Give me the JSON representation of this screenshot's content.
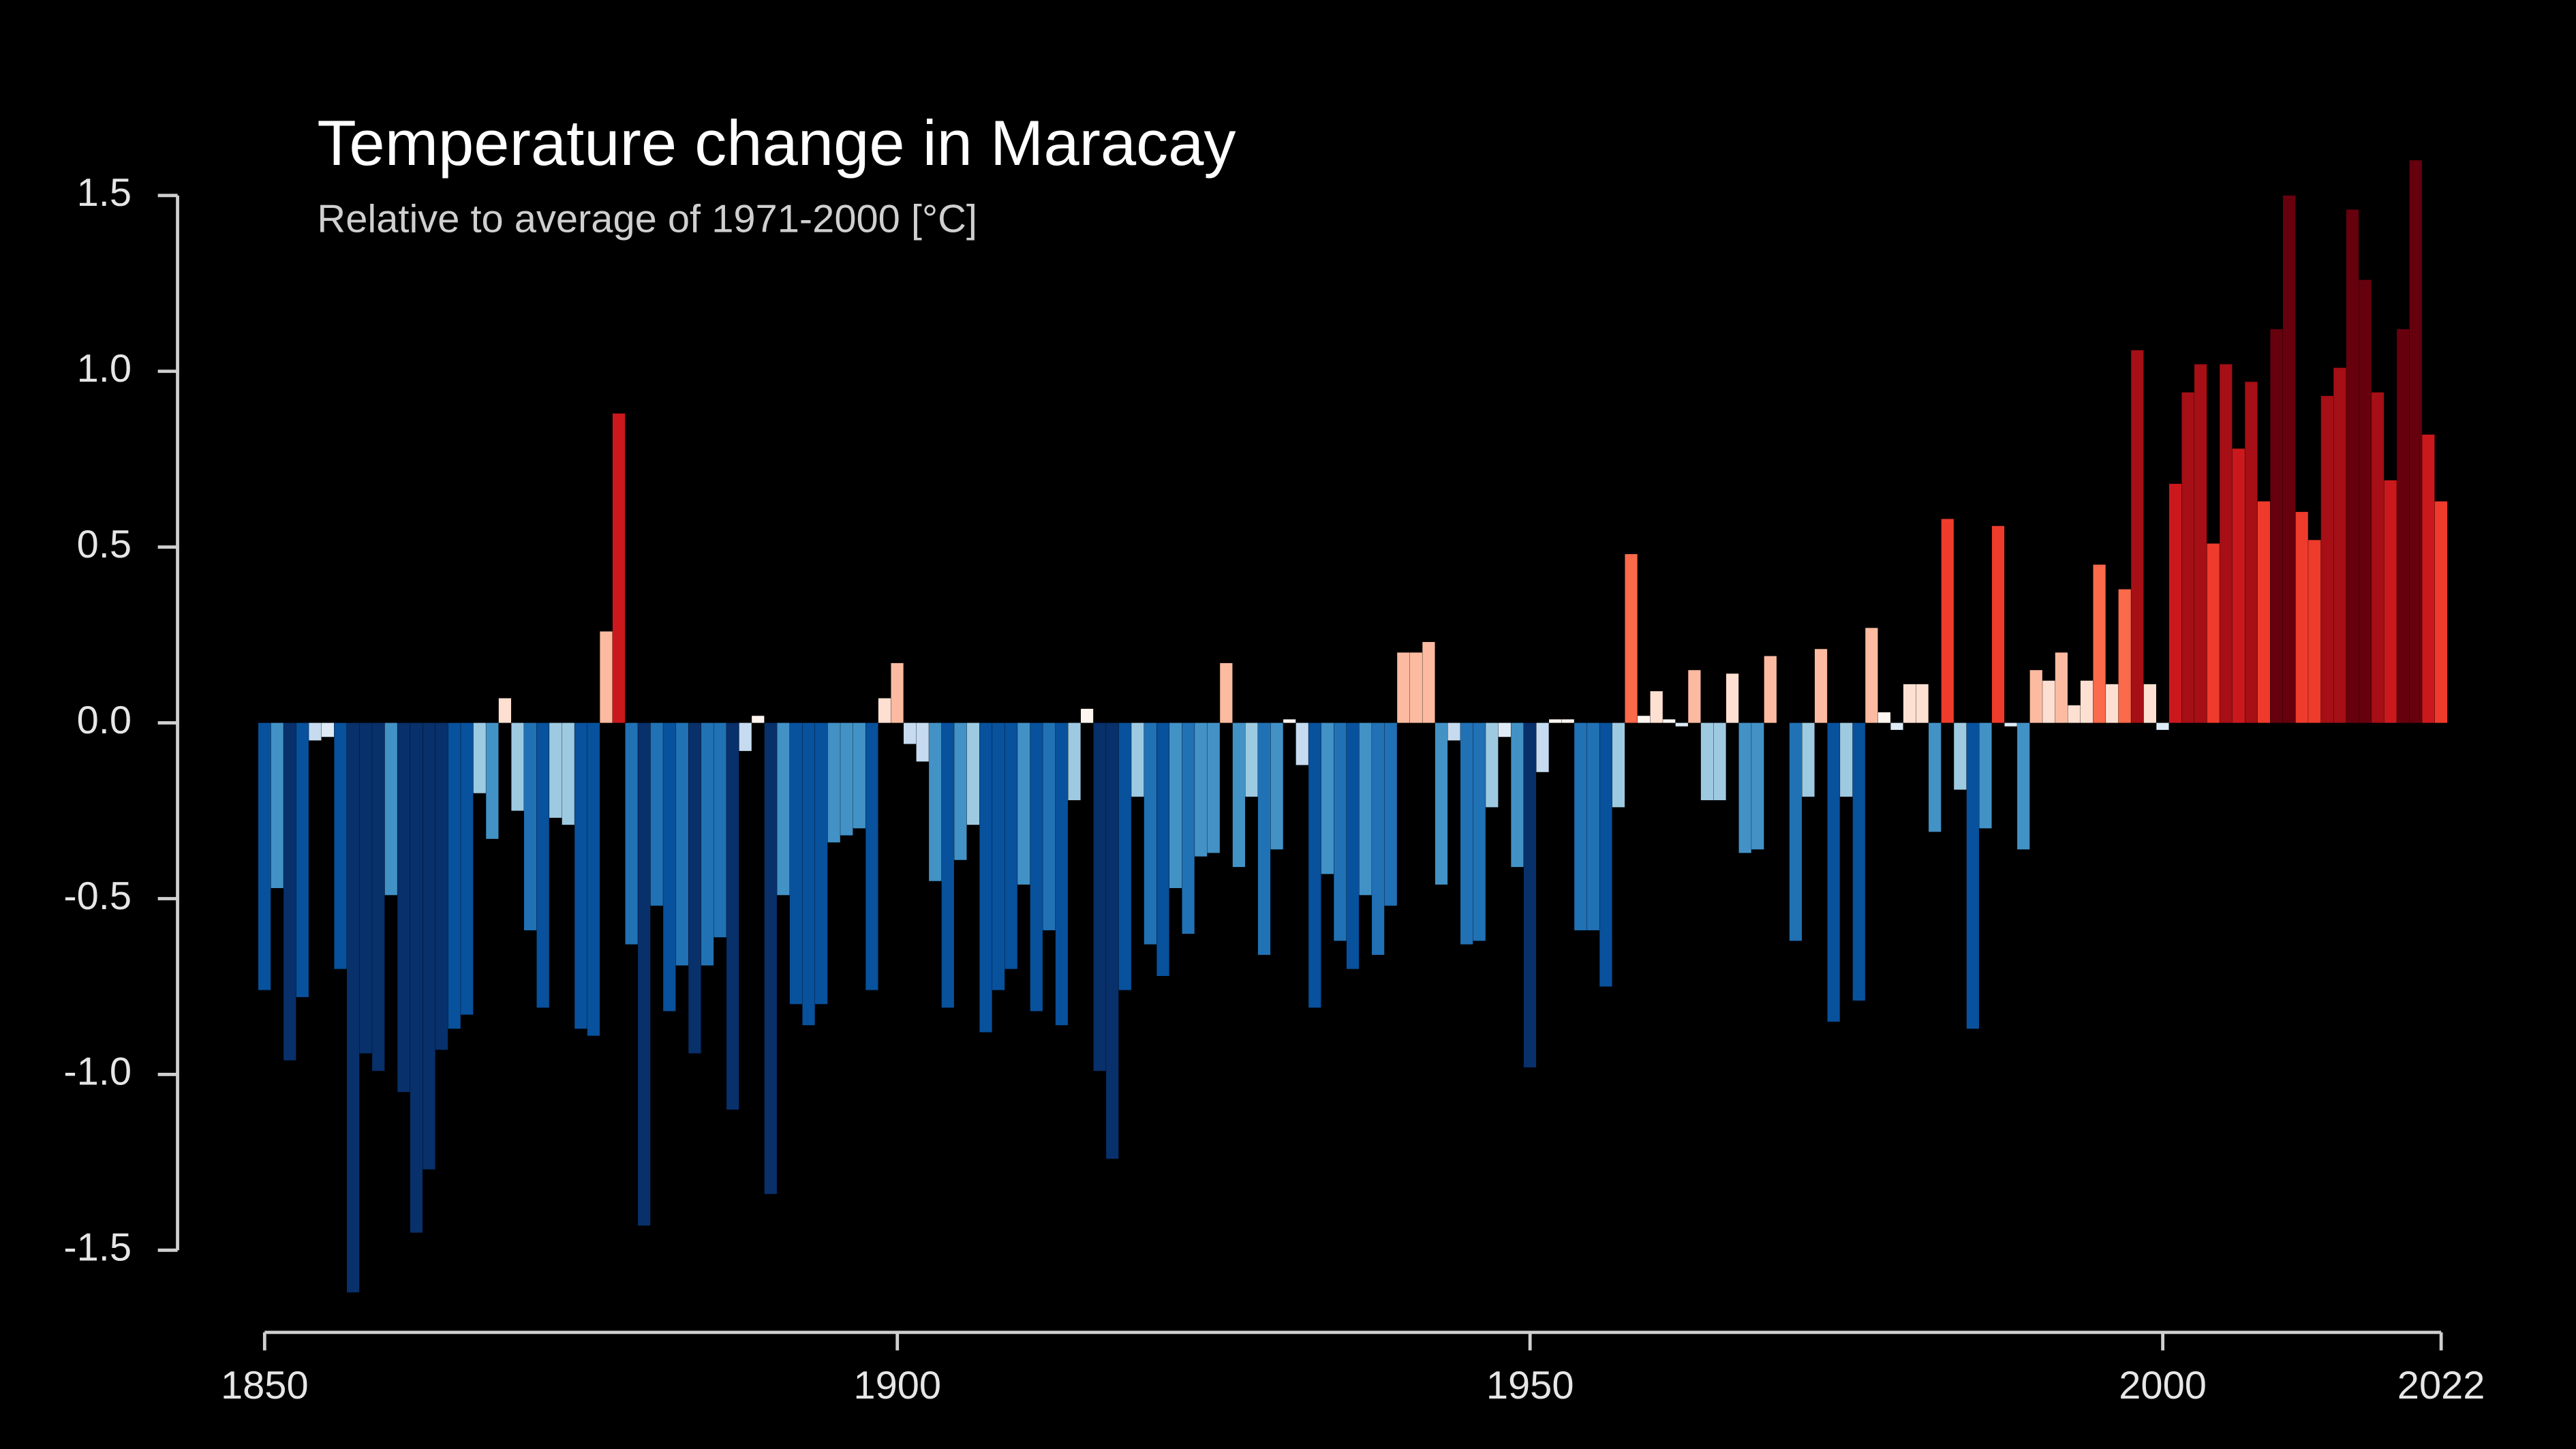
{
  "chart_data": {
    "type": "bar",
    "title": "Temperature change in Maracay",
    "subtitle": "Relative to average of 1971-2000  [°C]",
    "x": [
      1850,
      1851,
      1852,
      1853,
      1854,
      1855,
      1856,
      1857,
      1858,
      1859,
      1860,
      1861,
      1862,
      1863,
      1864,
      1865,
      1866,
      1867,
      1868,
      1869,
      1870,
      1871,
      1872,
      1873,
      1874,
      1875,
      1876,
      1877,
      1878,
      1879,
      1880,
      1881,
      1882,
      1883,
      1884,
      1885,
      1886,
      1887,
      1888,
      1889,
      1890,
      1891,
      1892,
      1893,
      1894,
      1895,
      1896,
      1897,
      1898,
      1899,
      1900,
      1901,
      1902,
      1903,
      1904,
      1905,
      1906,
      1907,
      1908,
      1909,
      1910,
      1911,
      1912,
      1913,
      1914,
      1915,
      1916,
      1917,
      1918,
      1919,
      1920,
      1921,
      1922,
      1923,
      1924,
      1925,
      1926,
      1927,
      1928,
      1929,
      1930,
      1931,
      1932,
      1933,
      1934,
      1935,
      1936,
      1937,
      1938,
      1939,
      1940,
      1941,
      1942,
      1943,
      1944,
      1945,
      1946,
      1947,
      1948,
      1949,
      1950,
      1951,
      1952,
      1953,
      1954,
      1955,
      1956,
      1957,
      1958,
      1959,
      1960,
      1961,
      1962,
      1963,
      1964,
      1965,
      1966,
      1967,
      1968,
      1969,
      1970,
      1971,
      1972,
      1973,
      1974,
      1975,
      1976,
      1977,
      1978,
      1979,
      1980,
      1981,
      1982,
      1983,
      1984,
      1985,
      1986,
      1987,
      1988,
      1989,
      1990,
      1991,
      1992,
      1993,
      1994,
      1995,
      1996,
      1997,
      1998,
      1999,
      2000,
      2001,
      2002,
      2003,
      2004,
      2005,
      2006,
      2007,
      2008,
      2009,
      2010,
      2011,
      2012,
      2013,
      2014,
      2015,
      2016,
      2017,
      2018,
      2019,
      2020,
      2021,
      2022
    ],
    "values": [
      -0.76,
      -0.47,
      -0.96,
      -0.78,
      -0.05,
      -0.04,
      -0.7,
      -1.62,
      -0.94,
      -0.99,
      -0.49,
      -1.05,
      -1.45,
      -1.27,
      -0.93,
      -0.87,
      -0.83,
      -0.2,
      -0.33,
      0.07,
      -0.25,
      -0.59,
      -0.81,
      -0.27,
      -0.29,
      -0.87,
      -0.89,
      0.26,
      0.88,
      -0.63,
      -1.43,
      -0.52,
      -0.82,
      -0.69,
      -0.94,
      -0.69,
      -0.61,
      -1.1,
      -0.08,
      0.02,
      -1.34,
      -0.49,
      -0.8,
      -0.86,
      -0.8,
      -0.34,
      -0.32,
      -0.3,
      -0.76,
      0.07,
      0.17,
      -0.06,
      -0.11,
      -0.45,
      -0.81,
      -0.39,
      -0.29,
      -0.88,
      -0.76,
      -0.7,
      -0.46,
      -0.82,
      -0.59,
      -0.86,
      -0.22,
      0.04,
      -0.99,
      -1.24,
      -0.76,
      -0.21,
      -0.63,
      -0.72,
      -0.47,
      -0.6,
      -0.38,
      -0.37,
      0.17,
      -0.41,
      -0.21,
      -0.66,
      -0.36,
      0.01,
      -0.12,
      -0.81,
      -0.43,
      -0.62,
      -0.7,
      -0.49,
      -0.66,
      -0.52,
      0.2,
      0.2,
      0.23,
      -0.46,
      -0.05,
      -0.63,
      -0.62,
      -0.24,
      -0.04,
      -0.41,
      -0.98,
      -0.14,
      0.01,
      0.01,
      -0.59,
      -0.59,
      -0.75,
      -0.24,
      0.48,
      0.02,
      0.09,
      0.01,
      -0.01,
      0.15,
      -0.22,
      -0.22,
      0.14,
      -0.37,
      -0.36,
      0.19,
      0,
      -0.62,
      -0.21,
      0.21,
      -0.85,
      -0.21,
      -0.79,
      0.27,
      0.03,
      -0.02,
      0.11,
      0.11,
      -0.31,
      0.58,
      -0.19,
      -0.87,
      -0.3,
      0.56,
      -0.01,
      -0.36,
      0.15,
      0.12,
      0.2,
      0.05,
      0.12,
      0.45,
      0.11,
      0.38,
      1.06,
      0.11,
      -0.02,
      0.68,
      0.94,
      1.02,
      0.51,
      1.02,
      0.78,
      0.97,
      0.63,
      1.12,
      1.5,
      0.6,
      0.52,
      0.93,
      1.01,
      1.46,
      1.26,
      0.94,
      0.69,
      1.12,
      1.6,
      0.82,
      0.63
    ],
    "colors": [
      "#08519c",
      "#4292c6",
      "#08306b",
      "#08519c",
      "#c6dbef",
      "#deebf7",
      "#08519c",
      "#08306b",
      "#08306b",
      "#08306b",
      "#4292c6",
      "#08306b",
      "#08306b",
      "#08306b",
      "#08306b",
      "#08519c",
      "#08519c",
      "#9ecae1",
      "#4292c6",
      "#fee0d2",
      "#9ecae1",
      "#2171b5",
      "#08519c",
      "#9ecae1",
      "#9ecae1",
      "#08519c",
      "#08519c",
      "#fcbba1",
      "#cb181d",
      "#2171b5",
      "#08306b",
      "#2171b5",
      "#08519c",
      "#2171b5",
      "#08306b",
      "#2171b5",
      "#2171b5",
      "#08306b",
      "#c6dbef",
      "#fff5f0",
      "#08306b",
      "#4292c6",
      "#08519c",
      "#08519c",
      "#08519c",
      "#4292c6",
      "#4292c6",
      "#4292c6",
      "#08519c",
      "#fee0d2",
      "#fcbba1",
      "#c6dbef",
      "#c6dbef",
      "#4292c6",
      "#08519c",
      "#4292c6",
      "#9ecae1",
      "#08519c",
      "#08519c",
      "#08519c",
      "#4292c6",
      "#08519c",
      "#2171b5",
      "#08519c",
      "#9ecae1",
      "#fff5f0",
      "#08306b",
      "#08306b",
      "#08519c",
      "#9ecae1",
      "#2171b5",
      "#08519c",
      "#4292c6",
      "#2171b5",
      "#4292c6",
      "#4292c6",
      "#fcbba1",
      "#4292c6",
      "#9ecae1",
      "#2171b5",
      "#4292c6",
      "#fff5f0",
      "#c6dbef",
      "#08519c",
      "#4292c6",
      "#2171b5",
      "#08519c",
      "#4292c6",
      "#2171b5",
      "#2171b5",
      "#fcbba1",
      "#fcbba1",
      "#fcbba1",
      "#4292c6",
      "#c6dbef",
      "#2171b5",
      "#2171b5",
      "#9ecae1",
      "#deebf7",
      "#4292c6",
      "#08306b",
      "#c6dbef",
      "#fff5f0",
      "#fff5f0",
      "#2171b5",
      "#2171b5",
      "#08519c",
      "#9ecae1",
      "#fb6a4a",
      "#fff5f0",
      "#fee0d2",
      "#fff5f0",
      "#deebf7",
      "#fcbba1",
      "#9ecae1",
      "#9ecae1",
      "#fee0d2",
      "#4292c6",
      "#4292c6",
      "#fcbba1",
      "#fff5f0",
      "#2171b5",
      "#9ecae1",
      "#fcbba1",
      "#08519c",
      "#9ecae1",
      "#08519c",
      "#fcbba1",
      "#fff5f0",
      "#deebf7",
      "#fee0d2",
      "#fee0d2",
      "#4292c6",
      "#ef3b2c",
      "#9ecae1",
      "#08519c",
      "#4292c6",
      "#ef3b2c",
      "#deebf7",
      "#4292c6",
      "#fcbba1",
      "#fee0d2",
      "#fcbba1",
      "#fee0d2",
      "#fee0d2",
      "#fb6a4a",
      "#fee0d2",
      "#fb6a4a",
      "#a50f15",
      "#fee0d2",
      "#deebf7",
      "#cb181d",
      "#a50f15",
      "#a50f15",
      "#ef3b2c",
      "#a50f15",
      "#cb181d",
      "#a50f15",
      "#ef3b2c",
      "#67000d",
      "#67000d",
      "#ef3b2c",
      "#ef3b2c",
      "#a50f15",
      "#a50f15",
      "#67000d",
      "#67000d",
      "#a50f15",
      "#cb181d",
      "#67000d",
      "#67000d",
      "#cb181d",
      "#ef3b2c"
    ],
    "xlim": [
      1850,
      2022
    ],
    "xticks": [
      1850,
      1900,
      1950,
      2000,
      2022
    ],
    "ylim": [
      -1.75,
      1.75
    ],
    "yticks": [
      1.5,
      {
        "value": 1,
        "label": "1.0"
      },
      0.5,
      {
        "value": 0,
        "label": "0.0"
      },
      -0.5,
      {
        "value": -1,
        "label": "-1.0"
      },
      -1.5
    ]
  }
}
